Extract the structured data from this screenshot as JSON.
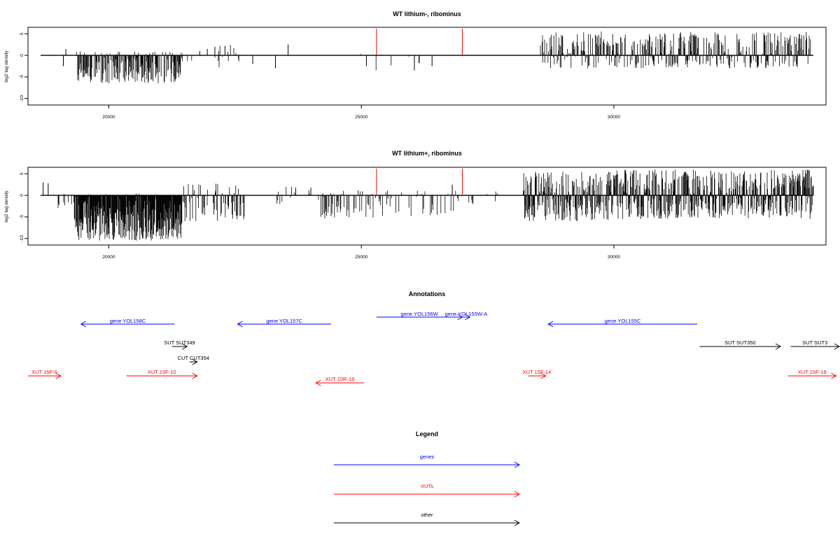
{
  "chart_data": [
    {
      "type": "bar",
      "title": "WT lithium-, ribominus",
      "ylabel": "log2 tag density",
      "xlabel": "",
      "xlim": [
        18400,
        34200
      ],
      "ylim": [
        -11.5,
        6.5
      ],
      "xticks": [
        20000,
        25000,
        30000
      ],
      "yticks": [
        5,
        0,
        -5,
        -10
      ],
      "grid": false,
      "series": [
        {
          "color": "#000000",
          "segments": [
            {
              "x0": 19350,
              "x1": 21450,
              "min": -6.5,
              "max": 1.0,
              "density": 0.65
            },
            {
              "x0": 21450,
              "x1": 21650,
              "min": -1.5,
              "max": 2.0,
              "density": 0.15
            },
            {
              "x0": 22100,
              "x1": 22600,
              "min": -3.0,
              "max": 2.5,
              "density": 0.2
            },
            {
              "x0": 24900,
              "x1": 26300,
              "min": -3.5,
              "max": 0.5,
              "density": 0.05
            },
            {
              "x0": 28550,
              "x1": 30000,
              "min": -3.0,
              "max": 5.5,
              "density": 0.55
            },
            {
              "x0": 30000,
              "x1": 33900,
              "min": -3.0,
              "max": 5.5,
              "density": 0.6
            }
          ],
          "spikes": [
            {
              "x": 19100,
              "y": -2.5
            },
            {
              "x": 19150,
              "y": 1.5
            },
            {
              "x": 21800,
              "y": 1.0
            },
            {
              "x": 21950,
              "y": 1.5
            },
            {
              "x": 22100,
              "y": 2.0
            },
            {
              "x": 22300,
              "y": 2.2
            },
            {
              "x": 22850,
              "y": -2.0
            },
            {
              "x": 23300,
              "y": -3.0
            },
            {
              "x": 23550,
              "y": 2.5
            },
            {
              "x": 25100,
              "y": -2.5
            },
            {
              "x": 26050,
              "y": -3.5
            },
            {
              "x": 26400,
              "y": -2.5
            },
            {
              "x": 33700,
              "y": 1.8
            }
          ]
        },
        {
          "color": "#ff0000",
          "spikes": [
            {
              "x": 25300,
              "y": 6.2
            },
            {
              "x": 27000,
              "y": 6.2
            }
          ]
        }
      ]
    },
    {
      "type": "bar",
      "title": "WT lithium+, ribominus",
      "ylabel": "log2 tag density",
      "xlabel": "",
      "xlim": [
        18400,
        34200
      ],
      "ylim": [
        -11.5,
        6.5
      ],
      "xticks": [
        20000,
        25000,
        30000
      ],
      "yticks": [
        5,
        0,
        -5,
        -10
      ],
      "grid": false,
      "series": [
        {
          "color": "#000000",
          "segments": [
            {
              "x0": 19000,
              "x1": 19300,
              "min": -3.0,
              "max": 0.5,
              "density": 0.3
            },
            {
              "x0": 19300,
              "x1": 21450,
              "min": -10.5,
              "max": 0.5,
              "density": 1.0
            },
            {
              "x0": 21450,
              "x1": 22700,
              "min": -6.0,
              "max": 2.8,
              "density": 0.35
            },
            {
              "x0": 23200,
              "x1": 24200,
              "min": -2.0,
              "max": 2.0,
              "density": 0.08
            },
            {
              "x0": 24200,
              "x1": 25300,
              "min": -5.5,
              "max": 1.5,
              "density": 0.3
            },
            {
              "x0": 25300,
              "x1": 26900,
              "min": -5.0,
              "max": 1.2,
              "density": 0.12
            },
            {
              "x0": 26900,
              "x1": 27700,
              "min": -3.0,
              "max": 1.0,
              "density": 0.08
            },
            {
              "x0": 28200,
              "x1": 30000,
              "min": -6.0,
              "max": 5.5,
              "density": 0.85
            },
            {
              "x0": 30000,
              "x1": 33950,
              "min": -5.5,
              "max": 6.0,
              "density": 0.9
            }
          ],
          "spikes": [
            {
              "x": 18700,
              "y": 3.0
            },
            {
              "x": 18800,
              "y": 2.8
            },
            {
              "x": 23700,
              "y": 1.8
            },
            {
              "x": 24000,
              "y": 1.8
            },
            {
              "x": 26800,
              "y": 2.5
            },
            {
              "x": 28300,
              "y": -5.0
            }
          ]
        },
        {
          "color": "#ff0000",
          "spikes": [
            {
              "x": 25300,
              "y": 6.2
            },
            {
              "x": 27000,
              "y": 6.2
            }
          ]
        }
      ]
    }
  ],
  "annotations": {
    "title": "Annotations",
    "genes": [
      {
        "label": "gene YOL158C",
        "x0": 21300,
        "x1": 19450
      },
      {
        "label": "gene YOL157C",
        "x0": 24400,
        "x1": 22550
      },
      {
        "label": "gene YOL156W",
        "x0": 25300,
        "x1": 27000
      },
      {
        "label": "gene YOL155W-A",
        "x0": 27000,
        "x1": 27150
      },
      {
        "label": "gene YOL155C",
        "x0": 31650,
        "x1": 28700
      }
    ],
    "other": [
      {
        "label": "SUT SUT349",
        "x0": 21250,
        "x1": 21550
      },
      {
        "label": "CUT CUT354",
        "x0": 21600,
        "x1": 21750
      },
      {
        "label": "SUT SUT350",
        "x0": 31700,
        "x1": 33300
      },
      {
        "label": "SUT SUT3",
        "x0": 33500,
        "x1": 35000
      }
    ],
    "xuts": [
      {
        "label": "XUT 15F-9",
        "x0": 18400,
        "x1": 19050
      },
      {
        "label": "XUT 15F-10",
        "x0": 20350,
        "x1": 21750
      },
      {
        "label": "XUT 15R-19",
        "x0": 25050,
        "x1": 24100
      },
      {
        "label": "XUT 15F-14",
        "x0": 28300,
        "x1": 28650
      },
      {
        "label": "XUT 15F-18",
        "x0": 33450,
        "x1": 34400
      }
    ]
  },
  "legend": {
    "title": "Legend",
    "items": [
      {
        "label": "genes",
        "color": "#0000ff"
      },
      {
        "label": "XUTs",
        "color": "#ff0000"
      },
      {
        "label": "other",
        "color": "#000000"
      }
    ]
  }
}
